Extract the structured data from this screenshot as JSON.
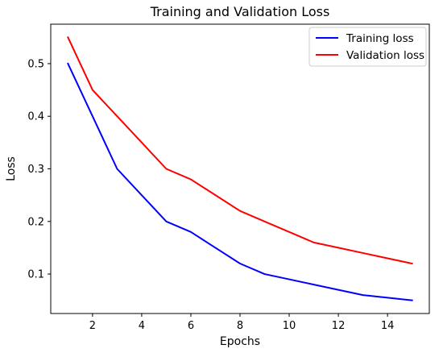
{
  "chart_data": {
    "type": "line",
    "title": "Training and Validation Loss",
    "xlabel": "Epochs",
    "ylabel": "Loss",
    "xlim": [
      0.3,
      15.7
    ],
    "ylim": [
      0.025,
      0.575
    ],
    "xticks": [
      2,
      4,
      6,
      8,
      10,
      12,
      14
    ],
    "yticks": [
      0.1,
      0.2,
      0.3,
      0.4,
      0.5
    ],
    "grid": false,
    "legend_position": "top-right",
    "x": [
      1,
      2,
      3,
      4,
      5,
      6,
      7,
      8,
      9,
      10,
      11,
      12,
      13,
      14,
      15
    ],
    "series": [
      {
        "name": "Training loss",
        "color": "#0000ff",
        "values": [
          0.5,
          0.4,
          0.3,
          0.25,
          0.2,
          0.18,
          0.15,
          0.12,
          0.1,
          0.09,
          0.08,
          0.07,
          0.06,
          0.055,
          0.05
        ]
      },
      {
        "name": "Validation loss",
        "color": "#ff0000",
        "values": [
          0.55,
          0.45,
          0.4,
          0.35,
          0.3,
          0.28,
          0.25,
          0.22,
          0.2,
          0.18,
          0.16,
          0.15,
          0.14,
          0.13,
          0.12
        ]
      }
    ]
  }
}
